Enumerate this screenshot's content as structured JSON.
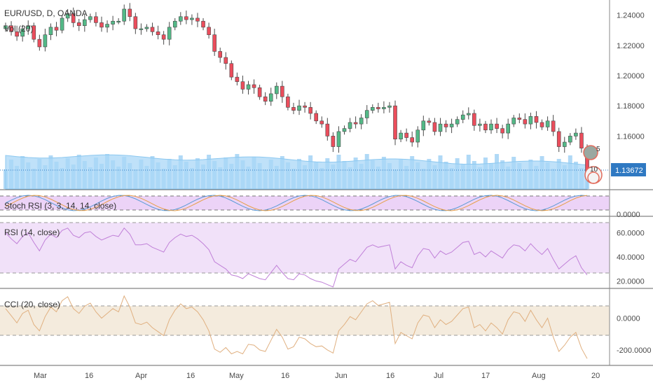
{
  "chart_data": {
    "type": "candlestick",
    "symbol_label": "EUR/USD, D, OANDA",
    "volume_label": "Vol (20)",
    "last_price": "1.13672",
    "colors": {
      "up": "#53b987",
      "down": "#eb4d5c",
      "volume": "#8ec9f2",
      "ma_band": "#a9d7f7",
      "last_price_bg": "#2f79c2",
      "stoch_bg": "#ecd3f7",
      "rsi_bg": "#f1e1f9",
      "rsi_line": "#c080d8",
      "cci_bg": "#f4ebdd",
      "cci_line": "#e0b080",
      "stoch_k": "#5b9bd5",
      "stoch_d": "#e6a04a"
    },
    "x_axis": {
      "labels": [
        "Mar",
        "16",
        "Apr",
        "16",
        "May",
        "16",
        "Jun",
        "16",
        "Jul",
        "17",
        "Aug",
        "20"
      ]
    },
    "price_axis": {
      "ticks": [
        "1.24000",
        "1.22000",
        "1.20000",
        "1.18000",
        "1.16000"
      ],
      "tick_values": [
        1.24,
        1.22,
        1.2,
        1.18,
        1.16
      ],
      "range": [
        1.125,
        1.25
      ]
    },
    "closes": [
      1.233,
      1.229,
      1.226,
      1.231,
      1.233,
      1.224,
      1.219,
      1.227,
      1.232,
      1.23,
      1.238,
      1.241,
      1.235,
      1.233,
      1.237,
      1.239,
      1.235,
      1.232,
      1.234,
      1.236,
      1.236,
      1.244,
      1.239,
      1.231,
      1.231,
      1.232,
      1.229,
      1.227,
      1.224,
      1.232,
      1.236,
      1.239,
      1.237,
      1.238,
      1.236,
      1.232,
      1.227,
      1.216,
      1.212,
      1.208,
      1.199,
      1.196,
      1.191,
      1.194,
      1.192,
      1.186,
      1.183,
      1.188,
      1.193,
      1.186,
      1.179,
      1.177,
      1.18,
      1.179,
      1.175,
      1.17,
      1.168,
      1.16,
      1.153,
      1.163,
      1.165,
      1.169,
      1.168,
      1.172,
      1.177,
      1.179,
      1.178,
      1.179,
      1.18,
      1.158,
      1.162,
      1.159,
      1.156,
      1.164,
      1.17,
      1.169,
      1.163,
      1.168,
      1.166,
      1.168,
      1.171,
      1.174,
      1.175,
      1.167,
      1.168,
      1.164,
      1.168,
      1.165,
      1.162,
      1.168,
      1.172,
      1.171,
      1.168,
      1.173,
      1.169,
      1.166,
      1.17,
      1.163,
      1.153,
      1.156,
      1.16,
      1.162,
      1.152,
      1.136
    ],
    "rsi": {
      "label": "RSI (14, close)",
      "ticks": [
        "60.0000",
        "40.0000",
        "20.0000"
      ],
      "tick_values": [
        60,
        40,
        20
      ],
      "levels": [
        70,
        30
      ],
      "range": [
        15,
        72
      ],
      "values": [
        60,
        55,
        51,
        57,
        60,
        52,
        45,
        54,
        59,
        56,
        62,
        64,
        58,
        56,
        60,
        61,
        57,
        54,
        56,
        58,
        57,
        64,
        59,
        50,
        50,
        51,
        48,
        46,
        44,
        52,
        56,
        59,
        57,
        58,
        55,
        51,
        46,
        36,
        33,
        30,
        25,
        24,
        22,
        26,
        24,
        22,
        21,
        27,
        33,
        27,
        22,
        21,
        26,
        25,
        22,
        20,
        19,
        17,
        15,
        30,
        34,
        38,
        36,
        42,
        48,
        50,
        48,
        49,
        50,
        30,
        36,
        33,
        31,
        41,
        47,
        46,
        39,
        45,
        42,
        44,
        48,
        52,
        53,
        42,
        44,
        40,
        45,
        42,
        39,
        46,
        50,
        49,
        45,
        51,
        46,
        42,
        47,
        38,
        30,
        34,
        38,
        41,
        31,
        25
      ]
    },
    "stoch_rsi": {
      "label": "Stoch RSI (3, 3, 14, 14, close)",
      "ticks": [
        "0.0000"
      ],
      "levels": [
        80,
        20
      ]
    },
    "cci": {
      "label": "CCI (20, close)",
      "ticks": [
        "0.0000",
        "-200.0000"
      ],
      "tick_values": [
        0,
        -200
      ],
      "levels": [
        100,
        -100
      ],
      "range": [
        -280,
        170
      ],
      "values": [
        60,
        15,
        -30,
        30,
        50,
        -40,
        -80,
        10,
        70,
        40,
        110,
        135,
        60,
        30,
        75,
        95,
        40,
        0,
        30,
        60,
        40,
        140,
        70,
        -30,
        -40,
        -25,
        -60,
        -85,
        -110,
        -10,
        50,
        90,
        60,
        70,
        40,
        -10,
        -80,
        -195,
        -215,
        -185,
        -225,
        -210,
        -225,
        -165,
        -170,
        -200,
        -210,
        -140,
        -70,
        -120,
        -195,
        -180,
        -120,
        -130,
        -160,
        -180,
        -175,
        -200,
        -220,
        -80,
        -40,
        10,
        -10,
        40,
        90,
        110,
        80,
        90,
        100,
        -160,
        -90,
        -110,
        -130,
        -30,
        20,
        10,
        -60,
        -10,
        -40,
        -20,
        20,
        60,
        70,
        -60,
        -40,
        -80,
        -30,
        -60,
        -100,
        -10,
        40,
        30,
        -20,
        50,
        -10,
        -60,
        0,
        -120,
        -210,
        -170,
        -120,
        -90,
        -190,
        -255
      ]
    },
    "annotations": [
      "5",
      "10"
    ]
  }
}
